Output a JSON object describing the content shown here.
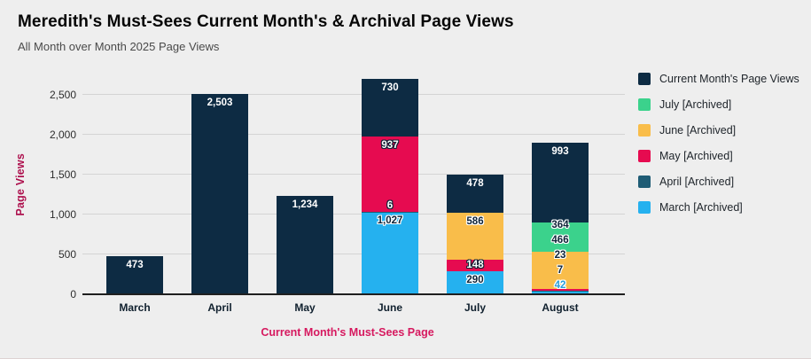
{
  "header": {
    "title": "Meredith's Must-Sees Current Month's & Archival Page Views",
    "subtitle": "All Month over Month 2025 Page Views"
  },
  "colors": {
    "background": "#eeeeee",
    "gridline": "#d4d4d4",
    "axis_line": "#1f1f1f",
    "y_axis_title": "#ad104d",
    "x_axis_title": "#d6195f",
    "current_month": "#0d2b43",
    "july_archived": "#3bd28c",
    "june_archived": "#f9bd4a",
    "may_archived": "#e60b50",
    "april_archived": "#1f5c75",
    "march_archived": "#25b1ef"
  },
  "chart_data": {
    "type": "bar",
    "stacked": true,
    "title": "Meredith's Must-Sees Current Month's & Archival Page Views",
    "subtitle": "All Month over Month 2025 Page Views",
    "xlabel": "Current Month's Must-Sees Page",
    "ylabel": "Page Views",
    "categories": [
      "March",
      "April",
      "May",
      "June",
      "July",
      "August"
    ],
    "series": [
      {
        "name": "March [Archived]",
        "color": "#25b1ef",
        "values": [
          0,
          0,
          0,
          1027,
          290,
          42
        ]
      },
      {
        "name": "April [Archived]",
        "color": "#1f5c75",
        "values": [
          0,
          0,
          0,
          6,
          0,
          7
        ]
      },
      {
        "name": "May [Archived]",
        "color": "#e60b50",
        "values": [
          0,
          0,
          0,
          937,
          148,
          23
        ]
      },
      {
        "name": "June [Archived]",
        "color": "#f9bd4a",
        "values": [
          0,
          0,
          0,
          0,
          586,
          466
        ]
      },
      {
        "name": "July [Archived]",
        "color": "#3bd28c",
        "values": [
          0,
          0,
          0,
          0,
          0,
          364
        ]
      },
      {
        "name": "Current Month's Page Views",
        "color": "#0d2b43",
        "values": [
          473,
          2503,
          1234,
          730,
          478,
          993
        ]
      }
    ],
    "bar_totals": [
      473,
      2503,
      1234,
      2700,
      1502,
      1895
    ],
    "y_ticks": [
      0,
      500,
      1000,
      1500,
      2000,
      2500
    ],
    "ylim": [
      0,
      2740
    ],
    "grid": true,
    "legend_position": "right",
    "legend_order_top_to_bottom": [
      "Current Month's Page Views",
      "July [Archived]",
      "June [Archived]",
      "May [Archived]",
      "April [Archived]",
      "March [Archived]"
    ]
  }
}
